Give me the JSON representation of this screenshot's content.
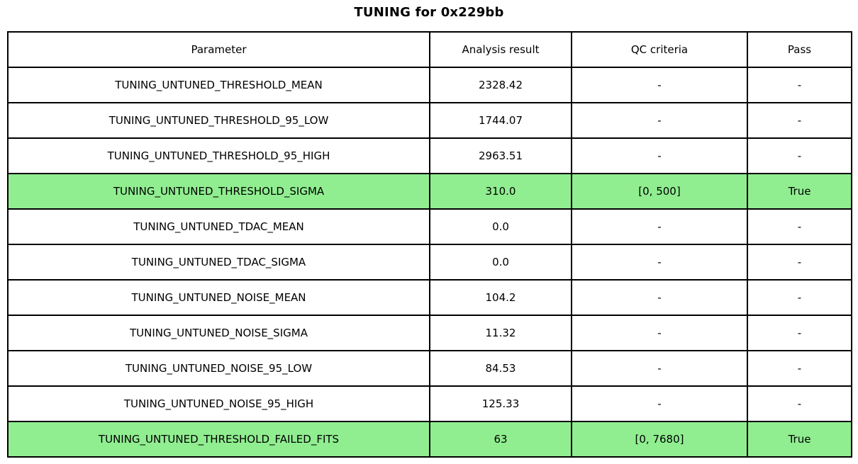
{
  "chart_data": {
    "type": "table",
    "title": "TUNING for 0x229bb",
    "columns": [
      "Parameter",
      "Analysis result",
      "QC criteria",
      "Pass"
    ],
    "rows": [
      [
        "TUNING_UNTUNED_THRESHOLD_MEAN",
        "2328.42",
        "-",
        "-"
      ],
      [
        "TUNING_UNTUNED_THRESHOLD_95_LOW",
        "1744.07",
        "-",
        "-"
      ],
      [
        "TUNING_UNTUNED_THRESHOLD_95_HIGH",
        "2963.51",
        "-",
        "-"
      ],
      [
        "TUNING_UNTUNED_THRESHOLD_SIGMA",
        "310.0",
        "[0, 500]",
        "True"
      ],
      [
        "TUNING_UNTUNED_TDAC_MEAN",
        "0.0",
        "-",
        "-"
      ],
      [
        "TUNING_UNTUNED_TDAC_SIGMA",
        "0.0",
        "-",
        "-"
      ],
      [
        "TUNING_UNTUNED_NOISE_MEAN",
        "104.2",
        "-",
        "-"
      ],
      [
        "TUNING_UNTUNED_NOISE_SIGMA",
        "11.32",
        "-",
        "-"
      ],
      [
        "TUNING_UNTUNED_NOISE_95_LOW",
        "84.53",
        "-",
        "-"
      ],
      [
        "TUNING_UNTUNED_NOISE_95_HIGH",
        "125.33",
        "-",
        "-"
      ],
      [
        "TUNING_UNTUNED_THRESHOLD_FAILED_FITS",
        "63",
        "[0, 7680]",
        "True"
      ]
    ],
    "highlighted_rows": [
      3,
      10
    ],
    "highlight_color": "#90ee90",
    "layout": {
      "grid": true,
      "border_color": "#000000",
      "background_color": "#ffffff",
      "text_color": "#000000"
    }
  }
}
